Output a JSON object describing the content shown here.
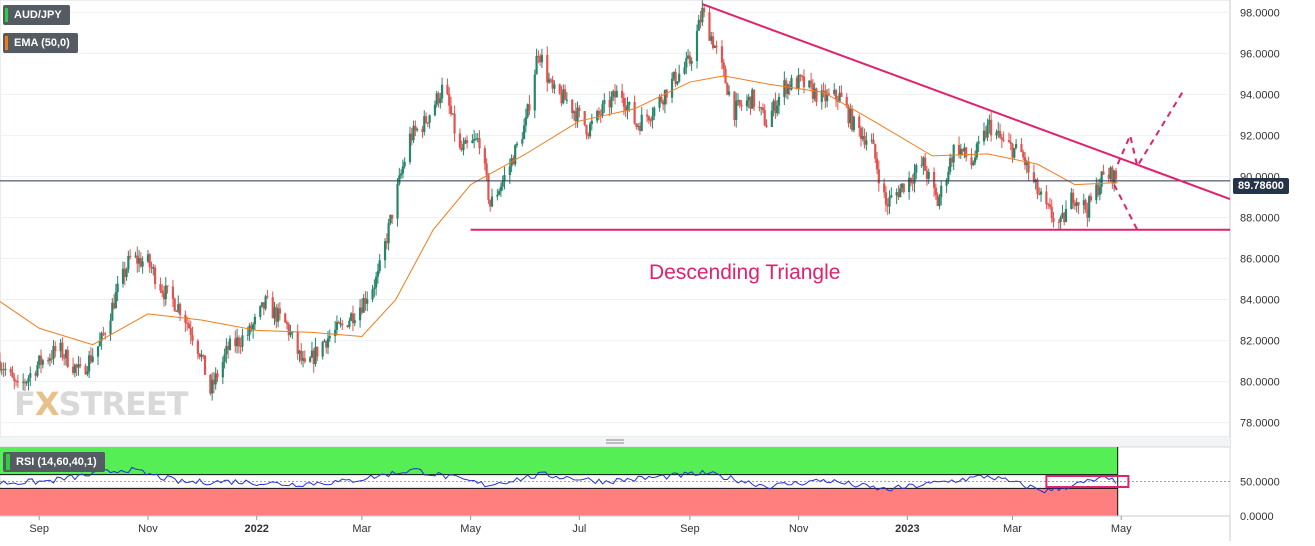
{
  "legend": {
    "symbol": "AUD/JPY",
    "ema": "EMA (50,0)",
    "rsi": "RSI (14,60,40,1)"
  },
  "watermark": {
    "part1": "F",
    "part2": "X",
    "part3": "STREET"
  },
  "colors": {
    "up": "#26866a",
    "down": "#e2524f",
    "ema": "#f07d1c",
    "trendline": "#e0226e",
    "rsi_line": "#2433d6",
    "rsi_upper_zone": "#55ee55",
    "rsi_lower_zone": "#ff7f7f",
    "price_tag": "#26344a"
  },
  "annotations": {
    "pattern_label": "Descending Triangle",
    "current_price_label": "89.78600"
  },
  "chart_data": [
    {
      "type": "candlestick",
      "title": "",
      "series": [
        {
          "name": "AUD/JPY"
        },
        {
          "name": "EMA (50,0)"
        }
      ],
      "x_ticks": [
        "Sep",
        "Nov",
        "2022",
        "Mar",
        "May",
        "Jul",
        "Sep",
        "Nov",
        "2023",
        "Mar",
        "May"
      ],
      "y_ticks": [
        "78.0000",
        "80.0000",
        "82.0000",
        "84.0000",
        "86.0000",
        "88.0000",
        "90.0000",
        "92.0000",
        "94.0000",
        "96.0000",
        "98.0000"
      ],
      "ylim": [
        77.3,
        98.6
      ],
      "x_range": [
        "2021-08-10",
        "2023-07-01"
      ],
      "current_price": 89.786,
      "price_points": [
        [
          "2021-08-10",
          81.0
        ],
        [
          "2021-08-20",
          79.6
        ],
        [
          "2021-09-01",
          80.9
        ],
        [
          "2021-09-12",
          81.6
        ],
        [
          "2021-09-24",
          80.4
        ],
        [
          "2021-10-06",
          82.0
        ],
        [
          "2021-10-14",
          84.2
        ],
        [
          "2021-10-22",
          86.0
        ],
        [
          "2021-11-01",
          85.8
        ],
        [
          "2021-11-10",
          84.4
        ],
        [
          "2021-11-20",
          83.5
        ],
        [
          "2021-11-30",
          81.5
        ],
        [
          "2021-12-06",
          79.5
        ],
        [
          "2021-12-16",
          81.6
        ],
        [
          "2021-12-28",
          82.4
        ],
        [
          "2022-01-06",
          83.8
        ],
        [
          "2022-01-18",
          82.7
        ],
        [
          "2022-01-28",
          80.6
        ],
        [
          "2022-02-08",
          82.0
        ],
        [
          "2022-02-18",
          82.7
        ],
        [
          "2022-03-01",
          83.8
        ],
        [
          "2022-03-10",
          85.1
        ],
        [
          "2022-03-20",
          89.0
        ],
        [
          "2022-03-28",
          91.9
        ],
        [
          "2022-04-05",
          92.6
        ],
        [
          "2022-04-16",
          94.4
        ],
        [
          "2022-04-25",
          91.2
        ],
        [
          "2022-05-06",
          91.8
        ],
        [
          "2022-05-12",
          88.6
        ],
        [
          "2022-05-22",
          90.3
        ],
        [
          "2022-06-01",
          92.6
        ],
        [
          "2022-06-08",
          96.2
        ],
        [
          "2022-06-16",
          94.1
        ],
        [
          "2022-06-24",
          93.7
        ],
        [
          "2022-07-06",
          92.3
        ],
        [
          "2022-07-14",
          93.2
        ],
        [
          "2022-07-24",
          94.2
        ],
        [
          "2022-08-02",
          92.5
        ],
        [
          "2022-08-12",
          93.3
        ],
        [
          "2022-08-22",
          94.6
        ],
        [
          "2022-09-01",
          95.6
        ],
        [
          "2022-09-08",
          98.0
        ],
        [
          "2022-09-16",
          96.1
        ],
        [
          "2022-09-26",
          93.2
        ],
        [
          "2022-10-06",
          93.8
        ],
        [
          "2022-10-14",
          92.6
        ],
        [
          "2022-10-24",
          94.4
        ],
        [
          "2022-11-02",
          94.6
        ],
        [
          "2022-11-14",
          93.8
        ],
        [
          "2022-11-24",
          93.9
        ],
        [
          "2022-12-02",
          92.5
        ],
        [
          "2022-12-12",
          91.6
        ],
        [
          "2022-12-20",
          88.6
        ],
        [
          "2022-12-30",
          89.6
        ],
        [
          "2023-01-10",
          90.6
        ],
        [
          "2023-01-18",
          88.7
        ],
        [
          "2023-01-28",
          91.6
        ],
        [
          "2023-02-06",
          90.6
        ],
        [
          "2023-02-16",
          92.5
        ],
        [
          "2023-02-24",
          91.6
        ],
        [
          "2023-03-06",
          91.1
        ],
        [
          "2023-03-13",
          89.6
        ],
        [
          "2023-03-20",
          88.4
        ],
        [
          "2023-03-28",
          87.6
        ],
        [
          "2023-04-04",
          89.1
        ],
        [
          "2023-04-12",
          88.4
        ],
        [
          "2023-04-20",
          89.9
        ],
        [
          "2023-04-26",
          90.1
        ],
        [
          "2023-04-29",
          89.786
        ]
      ],
      "ema_points": [
        [
          "2021-08-10",
          83.9
        ],
        [
          "2021-09-01",
          82.6
        ],
        [
          "2021-10-01",
          81.8
        ],
        [
          "2021-11-01",
          83.3
        ],
        [
          "2021-12-01",
          83.0
        ],
        [
          "2022-01-01",
          82.5
        ],
        [
          "2022-02-01",
          82.4
        ],
        [
          "2022-03-01",
          82.2
        ],
        [
          "2022-03-20",
          84.0
        ],
        [
          "2022-04-10",
          87.4
        ],
        [
          "2022-05-01",
          89.6
        ],
        [
          "2022-06-01",
          91.1
        ],
        [
          "2022-07-01",
          92.7
        ],
        [
          "2022-08-01",
          93.3
        ],
        [
          "2022-09-01",
          94.6
        ],
        [
          "2022-09-20",
          94.9
        ],
        [
          "2022-10-15",
          94.5
        ],
        [
          "2022-11-15",
          94.1
        ],
        [
          "2022-12-15",
          92.6
        ],
        [
          "2023-01-15",
          91.0
        ],
        [
          "2023-02-15",
          91.1
        ],
        [
          "2023-03-15",
          90.6
        ],
        [
          "2023-04-05",
          89.6
        ],
        [
          "2023-04-29",
          89.7
        ]
      ],
      "trendlines": [
        {
          "name": "descending-resistance",
          "start": [
            "2022-09-08",
            98.4
          ],
          "end": [
            "2023-07-01",
            88.9
          ]
        },
        {
          "name": "horizontal-support",
          "start": [
            "2022-05-01",
            87.4
          ],
          "end": [
            "2023-07-01",
            87.4
          ]
        }
      ],
      "projections": [
        {
          "name": "bearish-path",
          "points": [
            [
              "2023-04-27",
              89.6
            ],
            [
              "2023-05-10",
              87.4
            ]
          ]
        },
        {
          "name": "bullish-path",
          "points": [
            [
              "2023-04-29",
              90.6
            ],
            [
              "2023-05-06",
              92.0
            ],
            [
              "2023-05-10",
              90.5
            ],
            [
              "2023-06-05",
              94.2
            ]
          ]
        }
      ]
    },
    {
      "type": "line",
      "title": "",
      "series": [
        {
          "name": "RSI (14,60,40,1)"
        }
      ],
      "y_ticks": [
        "0.0000",
        "50.0000"
      ],
      "ylim": [
        0,
        100
      ],
      "levels": [
        60,
        40
      ],
      "rsi_points": [
        [
          "2021-08-10",
          48
        ],
        [
          "2021-09-05",
          50
        ],
        [
          "2021-10-20",
          68
        ],
        [
          "2021-11-20",
          49
        ],
        [
          "2021-12-20",
          50
        ],
        [
          "2022-01-20",
          46
        ],
        [
          "2022-02-20",
          50
        ],
        [
          "2022-03-30",
          67
        ],
        [
          "2022-05-10",
          45
        ],
        [
          "2022-06-10",
          60
        ],
        [
          "2022-07-15",
          50
        ],
        [
          "2022-09-10",
          62
        ],
        [
          "2022-10-15",
          43
        ],
        [
          "2022-11-15",
          52
        ],
        [
          "2022-12-20",
          38
        ],
        [
          "2023-02-15",
          58
        ],
        [
          "2023-03-20",
          36
        ],
        [
          "2023-04-20",
          54
        ],
        [
          "2023-04-29",
          50
        ]
      ],
      "highlight_box": {
        "x": [
          "2023-03-20",
          "2023-05-05"
        ],
        "y": [
          42,
          58
        ]
      }
    }
  ]
}
